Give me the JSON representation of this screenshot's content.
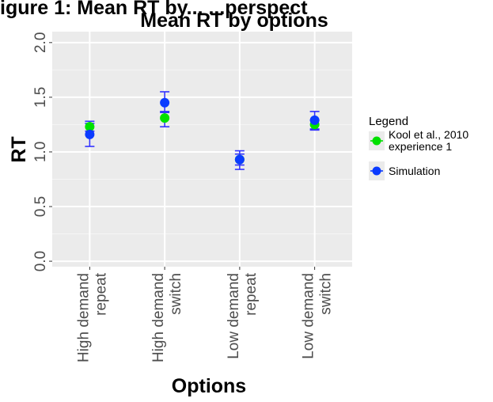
{
  "caption_fragment": "igure 1: Mean RT by... ...perspect",
  "chart_data": {
    "type": "scatter",
    "title": "Mean RT by options",
    "xlabel": "Options",
    "ylabel": "RT",
    "categories": [
      [
        "High demand",
        "repeat"
      ],
      [
        "High demand",
        "switch"
      ],
      [
        "Low demand",
        "repeat"
      ],
      [
        "Low demand",
        "switch"
      ]
    ],
    "ylim": [
      -0.05,
      2.1
    ],
    "yticks": [
      "0.0",
      "0.5",
      "1.0",
      "1.5",
      "2.0"
    ],
    "grid": true,
    "legend": {
      "title": "Legend",
      "placement": "right",
      "entries": [
        {
          "label_lines": [
            "Kool et al., 2010",
            "experience 1"
          ],
          "color": "#00e000"
        },
        {
          "label_lines": [
            "Simulation"
          ],
          "color": "#0b3bff"
        }
      ]
    },
    "series": [
      {
        "color": "#00e000",
        "values": [
          1.23,
          1.31,
          0.93,
          1.25
        ],
        "err_low": [
          1.19,
          1.23,
          0.88,
          1.2
        ],
        "err_high": [
          1.28,
          1.36,
          0.98,
          1.29
        ]
      },
      {
        "color": "#0b3bff",
        "values": [
          1.16,
          1.45,
          0.93,
          1.29
        ],
        "err_low": [
          1.05,
          1.37,
          0.84,
          1.21
        ],
        "err_high": [
          1.26,
          1.55,
          1.01,
          1.37
        ]
      }
    ],
    "errorbar_color": "#3333ff"
  }
}
